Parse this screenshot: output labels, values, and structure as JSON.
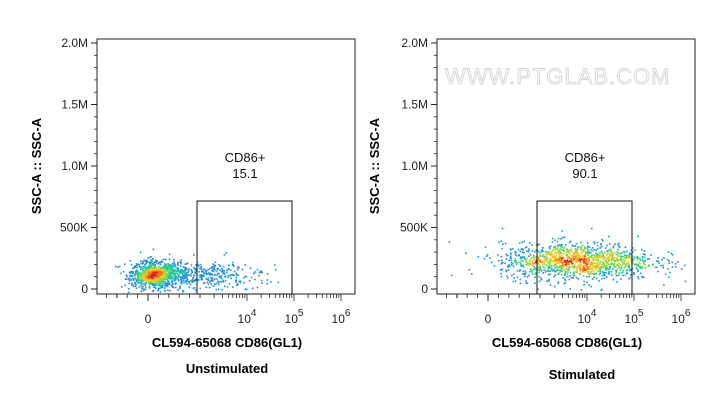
{
  "watermark": "WWW.PTGLAB.COM",
  "chart_data": [
    {
      "type": "scatter",
      "subtitle": "Unstimulated",
      "xlabel": "CL594-65068 CD86(GL1)",
      "ylabel": "SSC-A :: SSC-A",
      "x_scale": "biexponential",
      "x_tick_labels": [
        {
          "value": 0,
          "label": "0"
        },
        {
          "value": 10000,
          "label": "10^4"
        },
        {
          "value": 100000,
          "label": "10^5"
        },
        {
          "value": 1000000,
          "label": "10^6"
        }
      ],
      "y_ticks": [
        {
          "value": 0,
          "label": "0"
        },
        {
          "value": 500000,
          "label": "500K"
        },
        {
          "value": 1000000,
          "label": "1.0M"
        },
        {
          "value": 1500000,
          "label": "1.5M"
        },
        {
          "value": 2000000,
          "label": "2.0M"
        }
      ],
      "ylim": [
        -50000,
        2100000
      ],
      "gate": {
        "name": "CD86+",
        "value": "15.1",
        "x_range": [
          1500,
          120000
        ],
        "y_range": [
          0,
          730000
        ]
      },
      "population": {
        "x_center": 0,
        "x_spread": "mostly below 10^3, tail to ~5*10^4",
        "y_center": 120000,
        "percent_in_gate": 15.1
      }
    },
    {
      "type": "scatter",
      "subtitle": "Stimulated",
      "xlabel": "CL594-65068 CD86(GL1)",
      "ylabel": "SSC-A :: SSC-A",
      "x_scale": "biexponential",
      "x_tick_labels": [
        {
          "value": 0,
          "label": "0"
        },
        {
          "value": 10000,
          "label": "10^4"
        },
        {
          "value": 100000,
          "label": "10^5"
        },
        {
          "value": 1000000,
          "label": "10^6"
        }
      ],
      "y_ticks": [
        {
          "value": 0,
          "label": "0"
        },
        {
          "value": 500000,
          "label": "500K"
        },
        {
          "value": 1000000,
          "label": "1.0M"
        },
        {
          "value": 1500000,
          "label": "1.5M"
        },
        {
          "value": 2000000,
          "label": "2.0M"
        }
      ],
      "ylim": [
        -50000,
        2100000
      ],
      "gate": {
        "name": "CD86+",
        "value": "90.1",
        "x_range": [
          1500,
          120000
        ],
        "y_range": [
          0,
          730000
        ]
      },
      "population": {
        "x_center": 10000,
        "x_spread": "~10^2 to ~1.5*10^5",
        "y_center": 230000,
        "percent_in_gate": 90.1
      }
    }
  ]
}
